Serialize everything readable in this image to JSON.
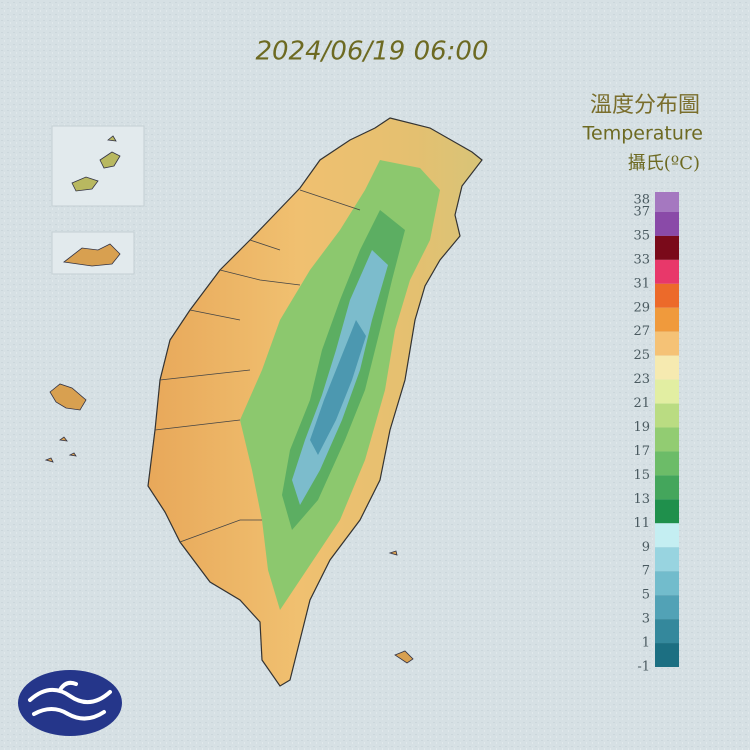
{
  "header": {
    "timestamp": "2024/06/19 06:00"
  },
  "legend": {
    "title": "溫度分布圖",
    "subtitle": "Temperature",
    "unit": "攝氏(ºC)",
    "ticks": [
      38,
      37,
      35,
      33,
      31,
      29,
      27,
      25,
      23,
      21,
      19,
      17,
      15,
      13,
      11,
      9,
      7,
      5,
      3,
      1,
      -1
    ],
    "colors": [
      "#a578c0",
      "#8a4aa8",
      "#7a0a1a",
      "#e8386a",
      "#ec6a2a",
      "#f09a3c",
      "#f5c276",
      "#f6eab0",
      "#e2eea2",
      "#badc82",
      "#92cc72",
      "#6cbc68",
      "#44a65c",
      "#1f904c",
      "#c4eef2",
      "#98d4e0",
      "#72bccc",
      "#52a2b6",
      "#34889c",
      "#1c6f82"
    ]
  }
}
